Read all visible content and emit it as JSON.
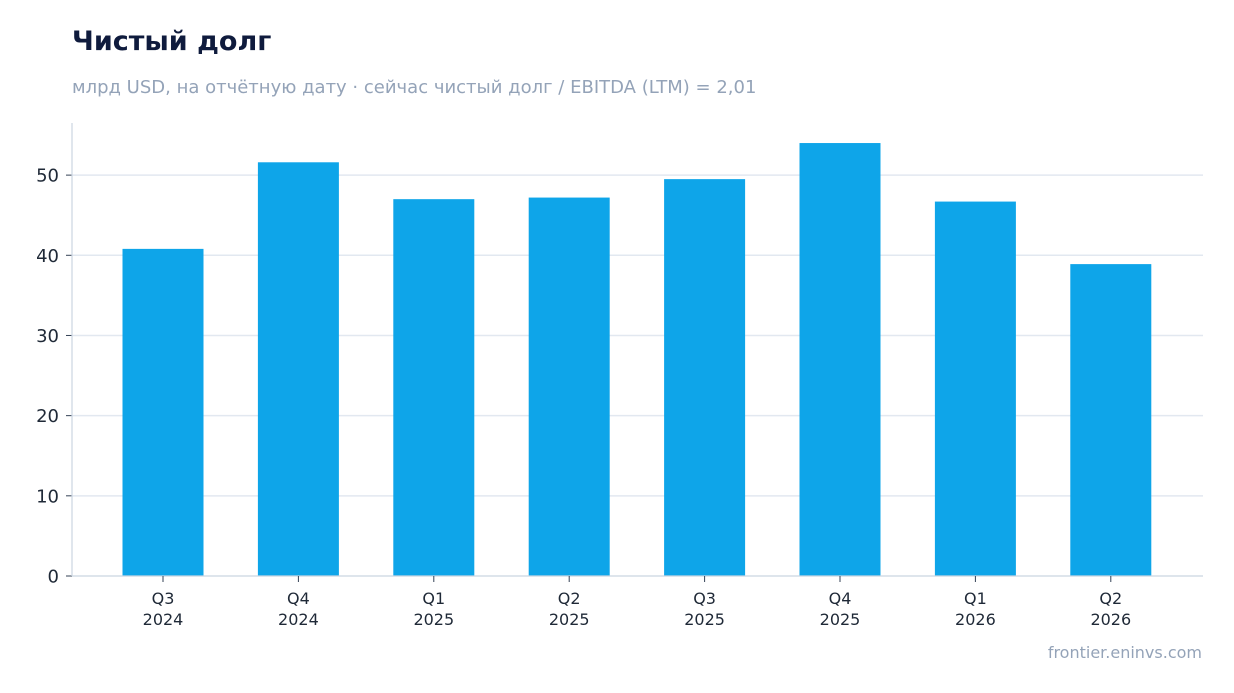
{
  "chart_data": {
    "type": "bar",
    "title": "Чистый долг",
    "subtitle": "млрд USD, на отчётную дату · сейчас чистый долг / EBITDA (LTM) = 2,01",
    "categories": [
      [
        "Q3",
        "2024"
      ],
      [
        "Q4",
        "2024"
      ],
      [
        "Q1",
        "2025"
      ],
      [
        "Q2",
        "2025"
      ],
      [
        "Q3",
        "2025"
      ],
      [
        "Q4",
        "2025"
      ],
      [
        "Q1",
        "2026"
      ],
      [
        "Q2",
        "2026"
      ]
    ],
    "values": [
      40.8,
      51.6,
      47.0,
      47.2,
      49.5,
      54.0,
      46.7,
      38.9
    ],
    "yticks": [
      0,
      10,
      20,
      30,
      40,
      50
    ],
    "ylim": [
      0,
      56.5
    ],
    "grid": true,
    "legend": "none",
    "bar_color": "#0ea5e9",
    "grid_color": "#e2e8f0",
    "axis_color": "#cbd5e1"
  },
  "source": "frontier.eninvs.com"
}
